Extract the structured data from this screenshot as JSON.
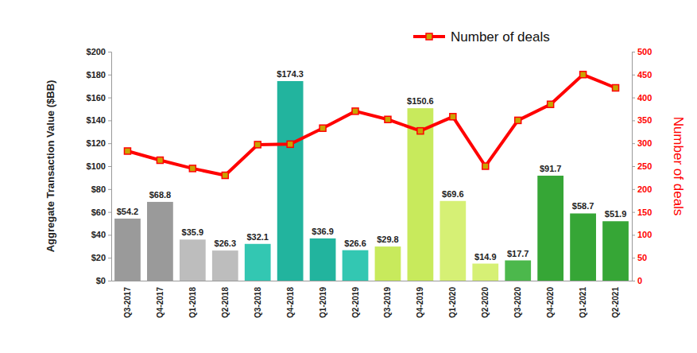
{
  "chart_data": {
    "type": "bar",
    "categories": [
      "Q3-2017",
      "Q4-2017",
      "Q1-2018",
      "Q2-2018",
      "Q3-2018",
      "Q4-2018",
      "Q1-2019",
      "Q2-2019",
      "Q3-2019",
      "Q4-2019",
      "Q1-2020",
      "Q2-2020",
      "Q3-2020",
      "Q4-2020",
      "Q1-2021",
      "Q2-2021"
    ],
    "values": [
      54.2,
      68.8,
      35.9,
      26.3,
      32.1,
      174.3,
      36.9,
      26.6,
      29.8,
      150.6,
      69.6,
      14.9,
      17.7,
      91.7,
      58.7,
      51.9
    ],
    "value_labels": [
      "$54.2",
      "$68.8",
      "$35.9",
      "$26.3",
      "$32.1",
      "$174.3",
      "$36.9",
      "$26.6",
      "$29.8",
      "$150.6",
      "$69.6",
      "$14.9",
      "$17.7",
      "$91.7",
      "$58.7",
      "$51.9"
    ],
    "colors": [
      "#9a9a9a",
      "#9a9a9a",
      "#bdbdbd",
      "#bdbdbd",
      "#33c7b2",
      "#22b49e",
      "#22b49e",
      "#33c7b2",
      "#c8ea5c",
      "#c8ea5c",
      "#d6f075",
      "#d6f075",
      "#4cb84c",
      "#36a636",
      "#36a636",
      "#36a636"
    ],
    "data_labels": true,
    "y_label": "Aggregate Transaction Value ($BB)",
    "ylim": [
      0,
      200
    ],
    "yticks": [
      {
        "value": 0,
        "label": "$0"
      },
      {
        "value": 20,
        "label": "$20"
      },
      {
        "value": 40,
        "label": "$40"
      },
      {
        "value": 60,
        "label": "$60"
      },
      {
        "value": 80,
        "label": "$80"
      },
      {
        "value": 100,
        "label": "$100"
      },
      {
        "value": 120,
        "label": "$120"
      },
      {
        "value": 140,
        "label": "$140"
      },
      {
        "value": 160,
        "label": "$160"
      },
      {
        "value": 180,
        "label": "$180"
      },
      {
        "value": 200,
        "label": "$200"
      }
    ],
    "y2_label": "Number of deals",
    "y2lim": [
      0,
      500
    ],
    "y2ticks": [
      0,
      50,
      100,
      150,
      200,
      250,
      300,
      350,
      400,
      450,
      500
    ],
    "grid": false,
    "legend": "top",
    "series": [
      {
        "name": "Number of deals",
        "type": "line",
        "axis": "y2",
        "color": "#ff0000",
        "marker": "square",
        "line_style": "solid",
        "values": [
          283,
          263,
          245,
          230,
          297,
          298,
          333,
          370,
          352,
          327,
          358,
          250,
          350,
          385,
          450,
          421
        ]
      }
    ]
  }
}
